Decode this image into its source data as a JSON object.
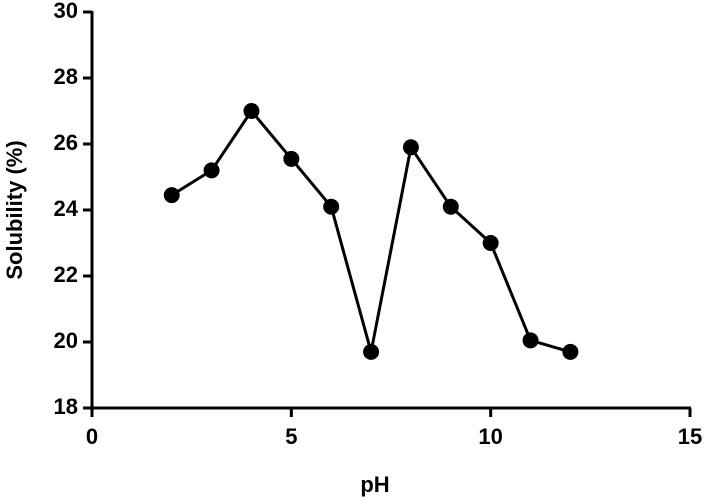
{
  "chart_data": {
    "type": "line",
    "x_label": "pH",
    "y_label": "Solubility (%)",
    "x": [
      2,
      3,
      4,
      5,
      6,
      7,
      8,
      9,
      10,
      11,
      12
    ],
    "values": [
      24.45,
      25.2,
      27.0,
      25.55,
      24.1,
      19.7,
      25.9,
      24.1,
      23.0,
      20.05,
      19.7
    ],
    "color": "#000000",
    "xlim": [
      0,
      15
    ],
    "xticks": [
      0,
      5,
      10,
      15
    ],
    "ylim": [
      18,
      30
    ],
    "yticks": [
      18,
      20,
      22,
      24,
      26,
      28,
      30
    ],
    "grid": false,
    "markers": true
  }
}
